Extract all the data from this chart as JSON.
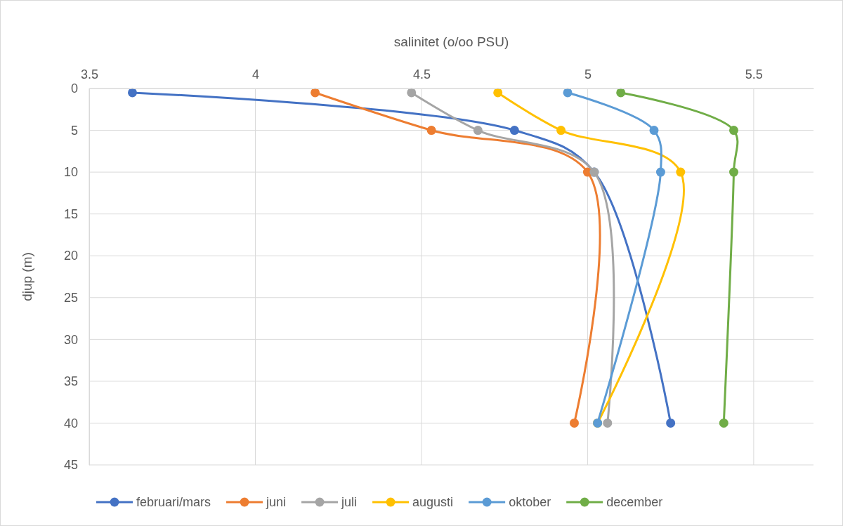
{
  "chart_data": {
    "type": "line",
    "xlabel": "salinitet (o/oo PSU)",
    "ylabel": "djup (m)",
    "xlim": [
      3.5,
      5.68
    ],
    "xticks": [
      3.5,
      4,
      4.5,
      5,
      5.5
    ],
    "ylim": [
      45,
      0
    ],
    "yticks": [
      0,
      5,
      10,
      15,
      20,
      25,
      30,
      35,
      40,
      45
    ],
    "grid": true,
    "legend": "bottom",
    "marker": "circle",
    "line_style": "solid",
    "series": [
      {
        "name": "februari/mars",
        "color": "#4472c4",
        "x": [
          3.63,
          4.78,
          5.02,
          5.25
        ],
        "values": [
          0.5,
          5,
          10,
          40
        ]
      },
      {
        "name": "juni",
        "color": "#ed7d31",
        "x": [
          4.18,
          4.53,
          5.0,
          4.96
        ],
        "values": [
          0.5,
          5,
          10,
          40
        ]
      },
      {
        "name": "juli",
        "color": "#a5a5a5",
        "x": [
          4.47,
          4.67,
          5.02,
          5.06
        ],
        "values": [
          0.5,
          5,
          10,
          40
        ]
      },
      {
        "name": "augusti",
        "color": "#ffc000",
        "x": [
          4.73,
          4.92,
          5.28,
          5.03
        ],
        "values": [
          0.5,
          5,
          10,
          40
        ]
      },
      {
        "name": "oktober",
        "color": "#5b9bd5",
        "x": [
          4.94,
          5.2,
          5.22,
          5.03
        ],
        "values": [
          0.5,
          5,
          10,
          40
        ]
      },
      {
        "name": "december",
        "color": "#70ad47",
        "x": [
          5.1,
          5.44,
          5.44,
          5.41
        ],
        "values": [
          0.5,
          5,
          10,
          40
        ]
      }
    ]
  }
}
